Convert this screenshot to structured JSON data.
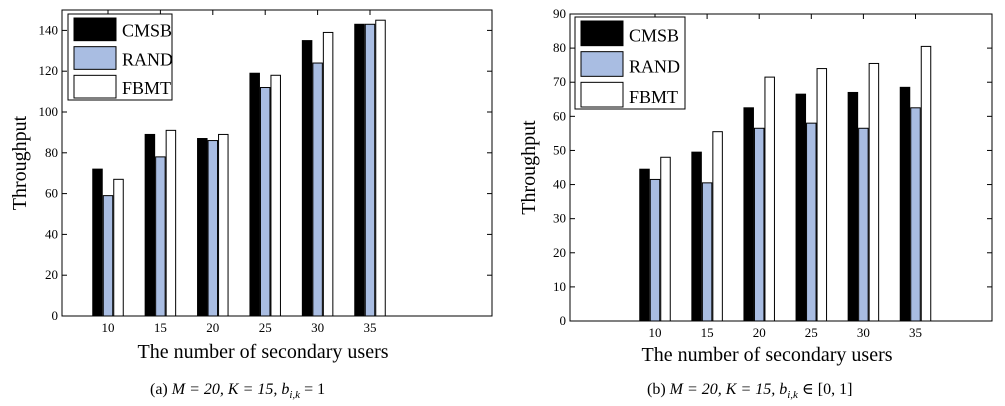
{
  "chart_data": [
    {
      "type": "bar",
      "xlabel": "The number of secondary users",
      "ylabel": "Throughput",
      "categories": [
        "10",
        "15",
        "20",
        "25",
        "30",
        "35"
      ],
      "ylim": [
        0,
        150
      ],
      "yticks": [
        0,
        20,
        40,
        60,
        80,
        100,
        120,
        140
      ],
      "legend": "top-left",
      "grid": false,
      "caption": {
        "prefix": "(a) ",
        "text": "M = 20, K = 15, b",
        "sub": "i,k",
        "suffix": " = 1"
      },
      "series": [
        {
          "name": "CMSB",
          "color": "#000000",
          "values": [
            72,
            89,
            87,
            119,
            135,
            143
          ]
        },
        {
          "name": "RAND",
          "color": "#a9bde2",
          "values": [
            59,
            78,
            86,
            112,
            124,
            143
          ]
        },
        {
          "name": "FBMT",
          "color": "#ffffff",
          "values": [
            67,
            91,
            89,
            118,
            139,
            145
          ]
        }
      ]
    },
    {
      "type": "bar",
      "xlabel": "The number of secondary users",
      "ylabel": "Throughput",
      "categories": [
        "10",
        "15",
        "20",
        "25",
        "30",
        "35"
      ],
      "ylim": [
        0,
        90
      ],
      "yticks": [
        0,
        10,
        20,
        30,
        40,
        50,
        60,
        70,
        80,
        90
      ],
      "legend": "top-left",
      "grid": false,
      "caption": {
        "prefix": "(b) ",
        "text": "M = 20, K = 15, b",
        "sub": "i,k",
        "suffix": " ∈ [0, 1]"
      },
      "series": [
        {
          "name": "CMSB",
          "color": "#000000",
          "values": [
            44.5,
            49.5,
            62.5,
            66.5,
            67,
            68.5
          ]
        },
        {
          "name": "RAND",
          "color": "#a9bde2",
          "values": [
            41.5,
            40.5,
            56.5,
            58,
            56.5,
            62.5
          ]
        },
        {
          "name": "FBMT",
          "color": "#ffffff",
          "values": [
            48,
            55.5,
            71.5,
            74,
            75.5,
            80.5
          ]
        }
      ]
    }
  ]
}
